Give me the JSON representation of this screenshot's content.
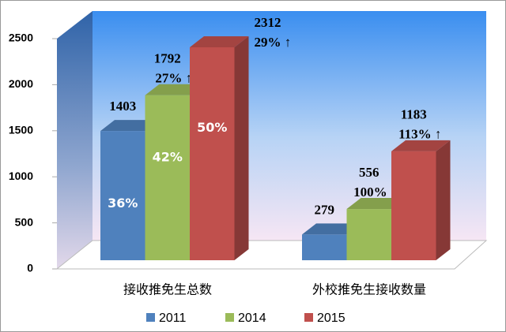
{
  "chart_data": {
    "type": "bar3d",
    "categories": [
      "接收推免生总数",
      "外校推免生接收数量"
    ],
    "series": [
      {
        "name": "2011",
        "color": "#4f81bd",
        "values": [
          1403,
          279
        ],
        "percent_labels": [
          "36%",
          null
        ],
        "growth_labels": [
          null,
          null
        ]
      },
      {
        "name": "2014",
        "color": "#9bbb59",
        "values": [
          1792,
          556
        ],
        "percent_labels": [
          "42%",
          null
        ],
        "growth_labels": [
          "27% ↑",
          "100% ↑"
        ]
      },
      {
        "name": "2015",
        "color": "#c0504d",
        "values": [
          2312,
          1183
        ],
        "percent_labels": [
          "50%",
          null
        ],
        "growth_labels": [
          "29% ↑",
          "113% ↑"
        ]
      }
    ],
    "ylim": [
      0,
      2500
    ],
    "yticks": [
      0,
      500,
      1000,
      1500,
      2000,
      2500
    ],
    "legend": "bottom"
  }
}
